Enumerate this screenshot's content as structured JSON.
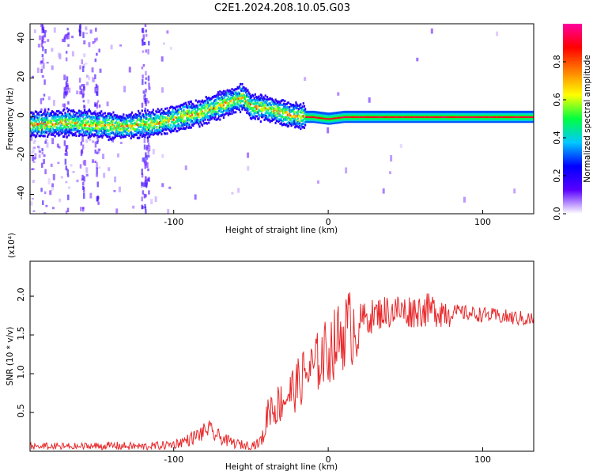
{
  "title": "C2E1.2024.208.10.05.G03",
  "chart_data": [
    {
      "type": "heatmap",
      "xlabel": "Height of straight line (km)",
      "ylabel": "Frequency (Hz)",
      "xlim": [
        -193,
        133
      ],
      "ylim": [
        -50,
        48
      ],
      "xticks": [
        -100,
        0,
        100
      ],
      "yticks": [
        -40,
        -20,
        0,
        20,
        40
      ],
      "x_tick_labels": [
        "-100",
        "0",
        "100"
      ],
      "y_tick_labels": [
        "-40",
        "-20",
        "0",
        "20",
        "40"
      ],
      "ridge": {
        "x": [
          -193,
          -170,
          -150,
          -135,
          -120,
          -110,
          -100,
          -90,
          -80,
          -70,
          -60,
          -55,
          -50,
          -45,
          -40,
          -35,
          -30,
          -25,
          -20,
          -15,
          -10,
          0,
          10,
          20,
          50,
          100,
          133
        ],
        "y": [
          -4,
          -3,
          -4,
          -5,
          -4,
          -3,
          -1,
          1,
          3,
          6,
          9,
          10,
          5,
          5,
          4,
          3,
          2,
          1,
          0,
          0,
          0,
          -1,
          0,
          0,
          0,
          0,
          0
        ]
      },
      "colorbar": {
        "label": "Normalized spectral amplitude",
        "range": [
          0,
          1
        ],
        "ticks": [
          0.0,
          0.2,
          0.4,
          0.6,
          0.8
        ],
        "tick_labels": [
          "0.0",
          "0.2",
          "0.4",
          "0.6",
          "0.8"
        ],
        "colors": [
          "#ffffff",
          "#5a00ff",
          "#0000ff",
          "#00c8ff",
          "#00ff40",
          "#ffff00",
          "#ff8000",
          "#ff0000",
          "#ff00a0"
        ]
      }
    },
    {
      "type": "line",
      "xlabel": "Height of straight line (km)",
      "ylabel": "SNR (10 * v/v)",
      "exponent_label": "(x10⁴)",
      "xlim": [
        -193,
        133
      ],
      "ylim": [
        0,
        2.45
      ],
      "xticks": [
        -100,
        0,
        100
      ],
      "yticks": [
        0.5,
        1.0,
        1.5,
        2.0
      ],
      "x_tick_labels": [
        "-100",
        "0",
        "100"
      ],
      "y_tick_labels": [
        "0.5",
        "1.0",
        "1.5",
        "2.0"
      ],
      "line_color": "#e8282a",
      "series": [
        {
          "x": [
            -193,
            -180,
            -160,
            -140,
            -120,
            -110,
            -100,
            -95,
            -90,
            -85,
            -80,
            -78,
            -75,
            -70,
            -65,
            -60,
            -55,
            -50,
            -45,
            -42,
            -40,
            -38,
            -35,
            -30,
            -25,
            -20,
            -15,
            -10,
            -5,
            0,
            5,
            10,
            15,
            20,
            25,
            30,
            35,
            40,
            45,
            50,
            60,
            70,
            80,
            90,
            100,
            110,
            120,
            133
          ],
          "y": [
            0.06,
            0.06,
            0.06,
            0.07,
            0.06,
            0.07,
            0.09,
            0.12,
            0.15,
            0.2,
            0.25,
            0.3,
            0.23,
            0.18,
            0.13,
            0.1,
            0.08,
            0.08,
            0.1,
            0.2,
            0.42,
            0.6,
            0.55,
            0.65,
            0.75,
            0.85,
            1.0,
            1.05,
            1.2,
            1.3,
            1.4,
            1.55,
            1.6,
            1.68,
            1.72,
            1.75,
            1.8,
            1.8,
            1.82,
            1.8,
            1.82,
            1.82,
            1.8,
            1.78,
            1.76,
            1.74,
            1.72,
            1.7
          ]
        }
      ]
    }
  ]
}
